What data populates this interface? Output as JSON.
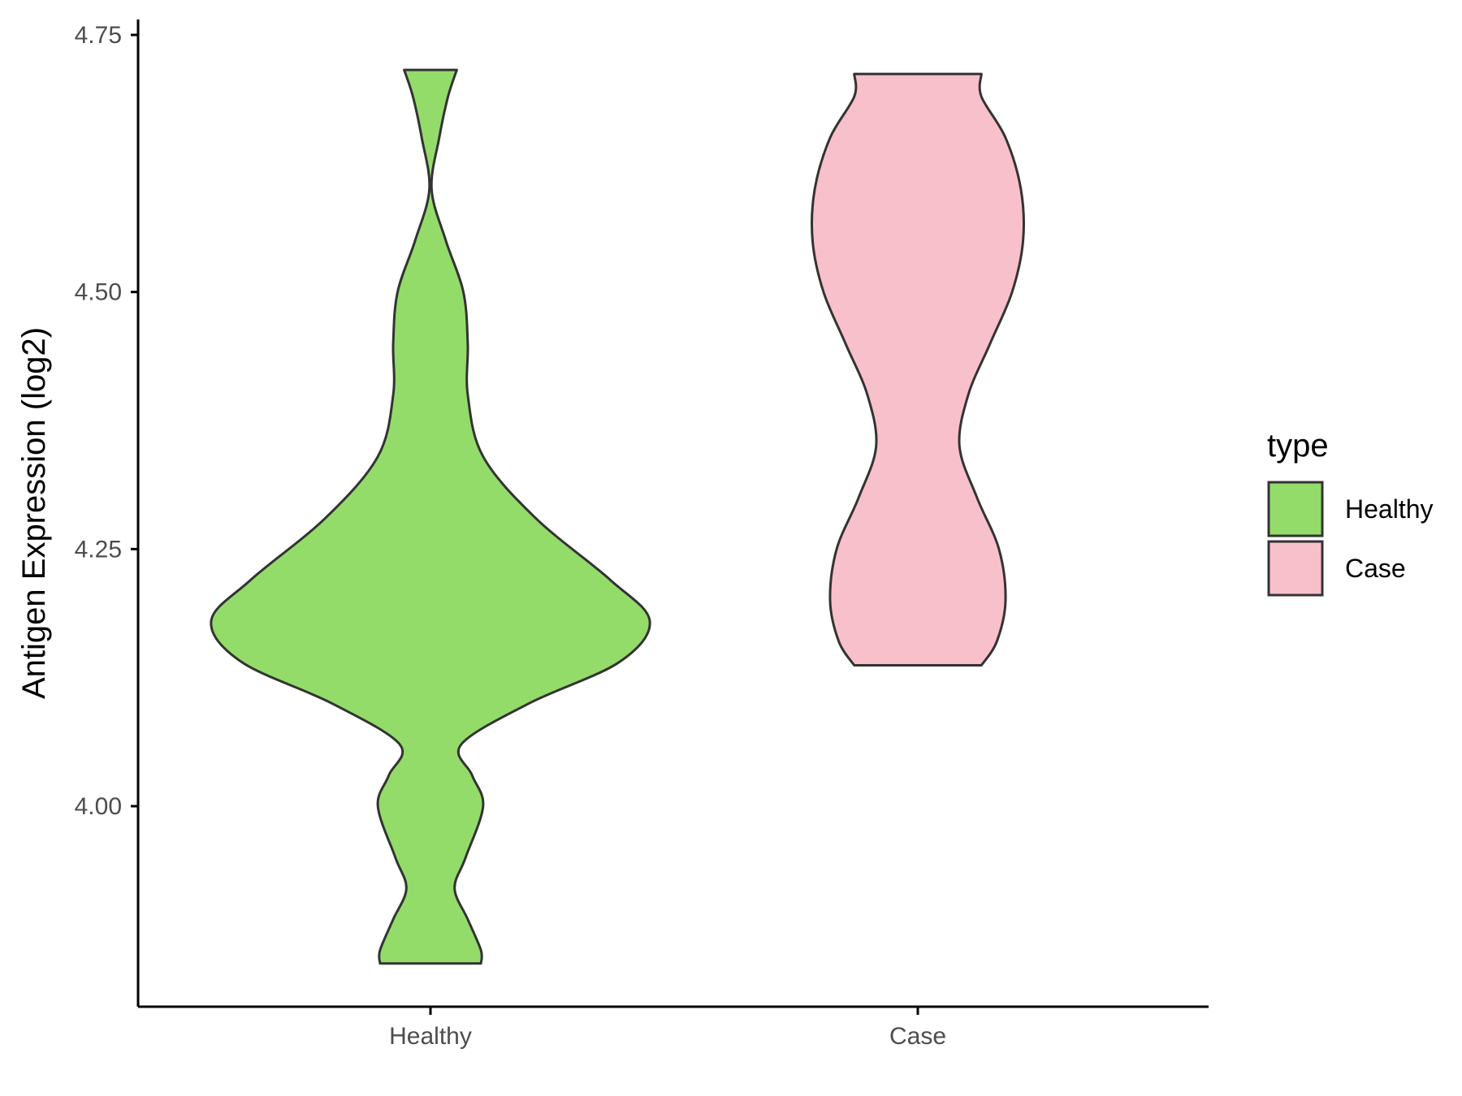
{
  "chart_data": {
    "type": "violin",
    "title": "",
    "xlabel": "",
    "ylabel": "Antigen Expression (log2)",
    "ylim": [
      3.805,
      4.765
    ],
    "yticks": [
      4.0,
      4.25,
      4.5,
      4.75
    ],
    "ytick_labels": [
      "4.00",
      "4.25",
      "4.50",
      "4.75"
    ],
    "categories": [
      "Healthy",
      "Case"
    ],
    "legend": {
      "title": "type",
      "position": "right",
      "entries": [
        {
          "label": "Healthy",
          "color": "#93dc6a"
        },
        {
          "label": "Case",
          "color": "#f8c0cb"
        }
      ]
    },
    "grid": false,
    "series": [
      {
        "category": "Healthy",
        "color": "#93dc6a",
        "y_min": 3.847,
        "y_max": 4.716,
        "profile": [
          [
            3.847,
            0.23
          ],
          [
            3.86,
            0.23
          ],
          [
            3.89,
            0.17
          ],
          [
            3.92,
            0.11
          ],
          [
            3.95,
            0.16
          ],
          [
            4.0,
            0.24
          ],
          [
            4.03,
            0.19
          ],
          [
            4.06,
            0.14
          ],
          [
            4.1,
            0.45
          ],
          [
            4.14,
            0.86
          ],
          [
            4.18,
            1.0
          ],
          [
            4.22,
            0.82
          ],
          [
            4.28,
            0.48
          ],
          [
            4.34,
            0.24
          ],
          [
            4.4,
            0.17
          ],
          [
            4.45,
            0.17
          ],
          [
            4.5,
            0.15
          ],
          [
            4.55,
            0.07
          ],
          [
            4.6,
            0.005
          ],
          [
            4.65,
            0.04
          ],
          [
            4.69,
            0.08
          ],
          [
            4.716,
            0.12
          ]
        ]
      },
      {
        "category": "Case",
        "color": "#f8c0cb",
        "y_min": 4.137,
        "y_max": 4.712,
        "profile": [
          [
            4.137,
            0.29
          ],
          [
            4.16,
            0.36
          ],
          [
            4.2,
            0.4
          ],
          [
            4.25,
            0.37
          ],
          [
            4.3,
            0.27
          ],
          [
            4.35,
            0.19
          ],
          [
            4.4,
            0.23
          ],
          [
            4.45,
            0.33
          ],
          [
            4.5,
            0.43
          ],
          [
            4.55,
            0.48
          ],
          [
            4.6,
            0.47
          ],
          [
            4.65,
            0.4
          ],
          [
            4.69,
            0.29
          ],
          [
            4.712,
            0.29
          ]
        ]
      }
    ]
  }
}
